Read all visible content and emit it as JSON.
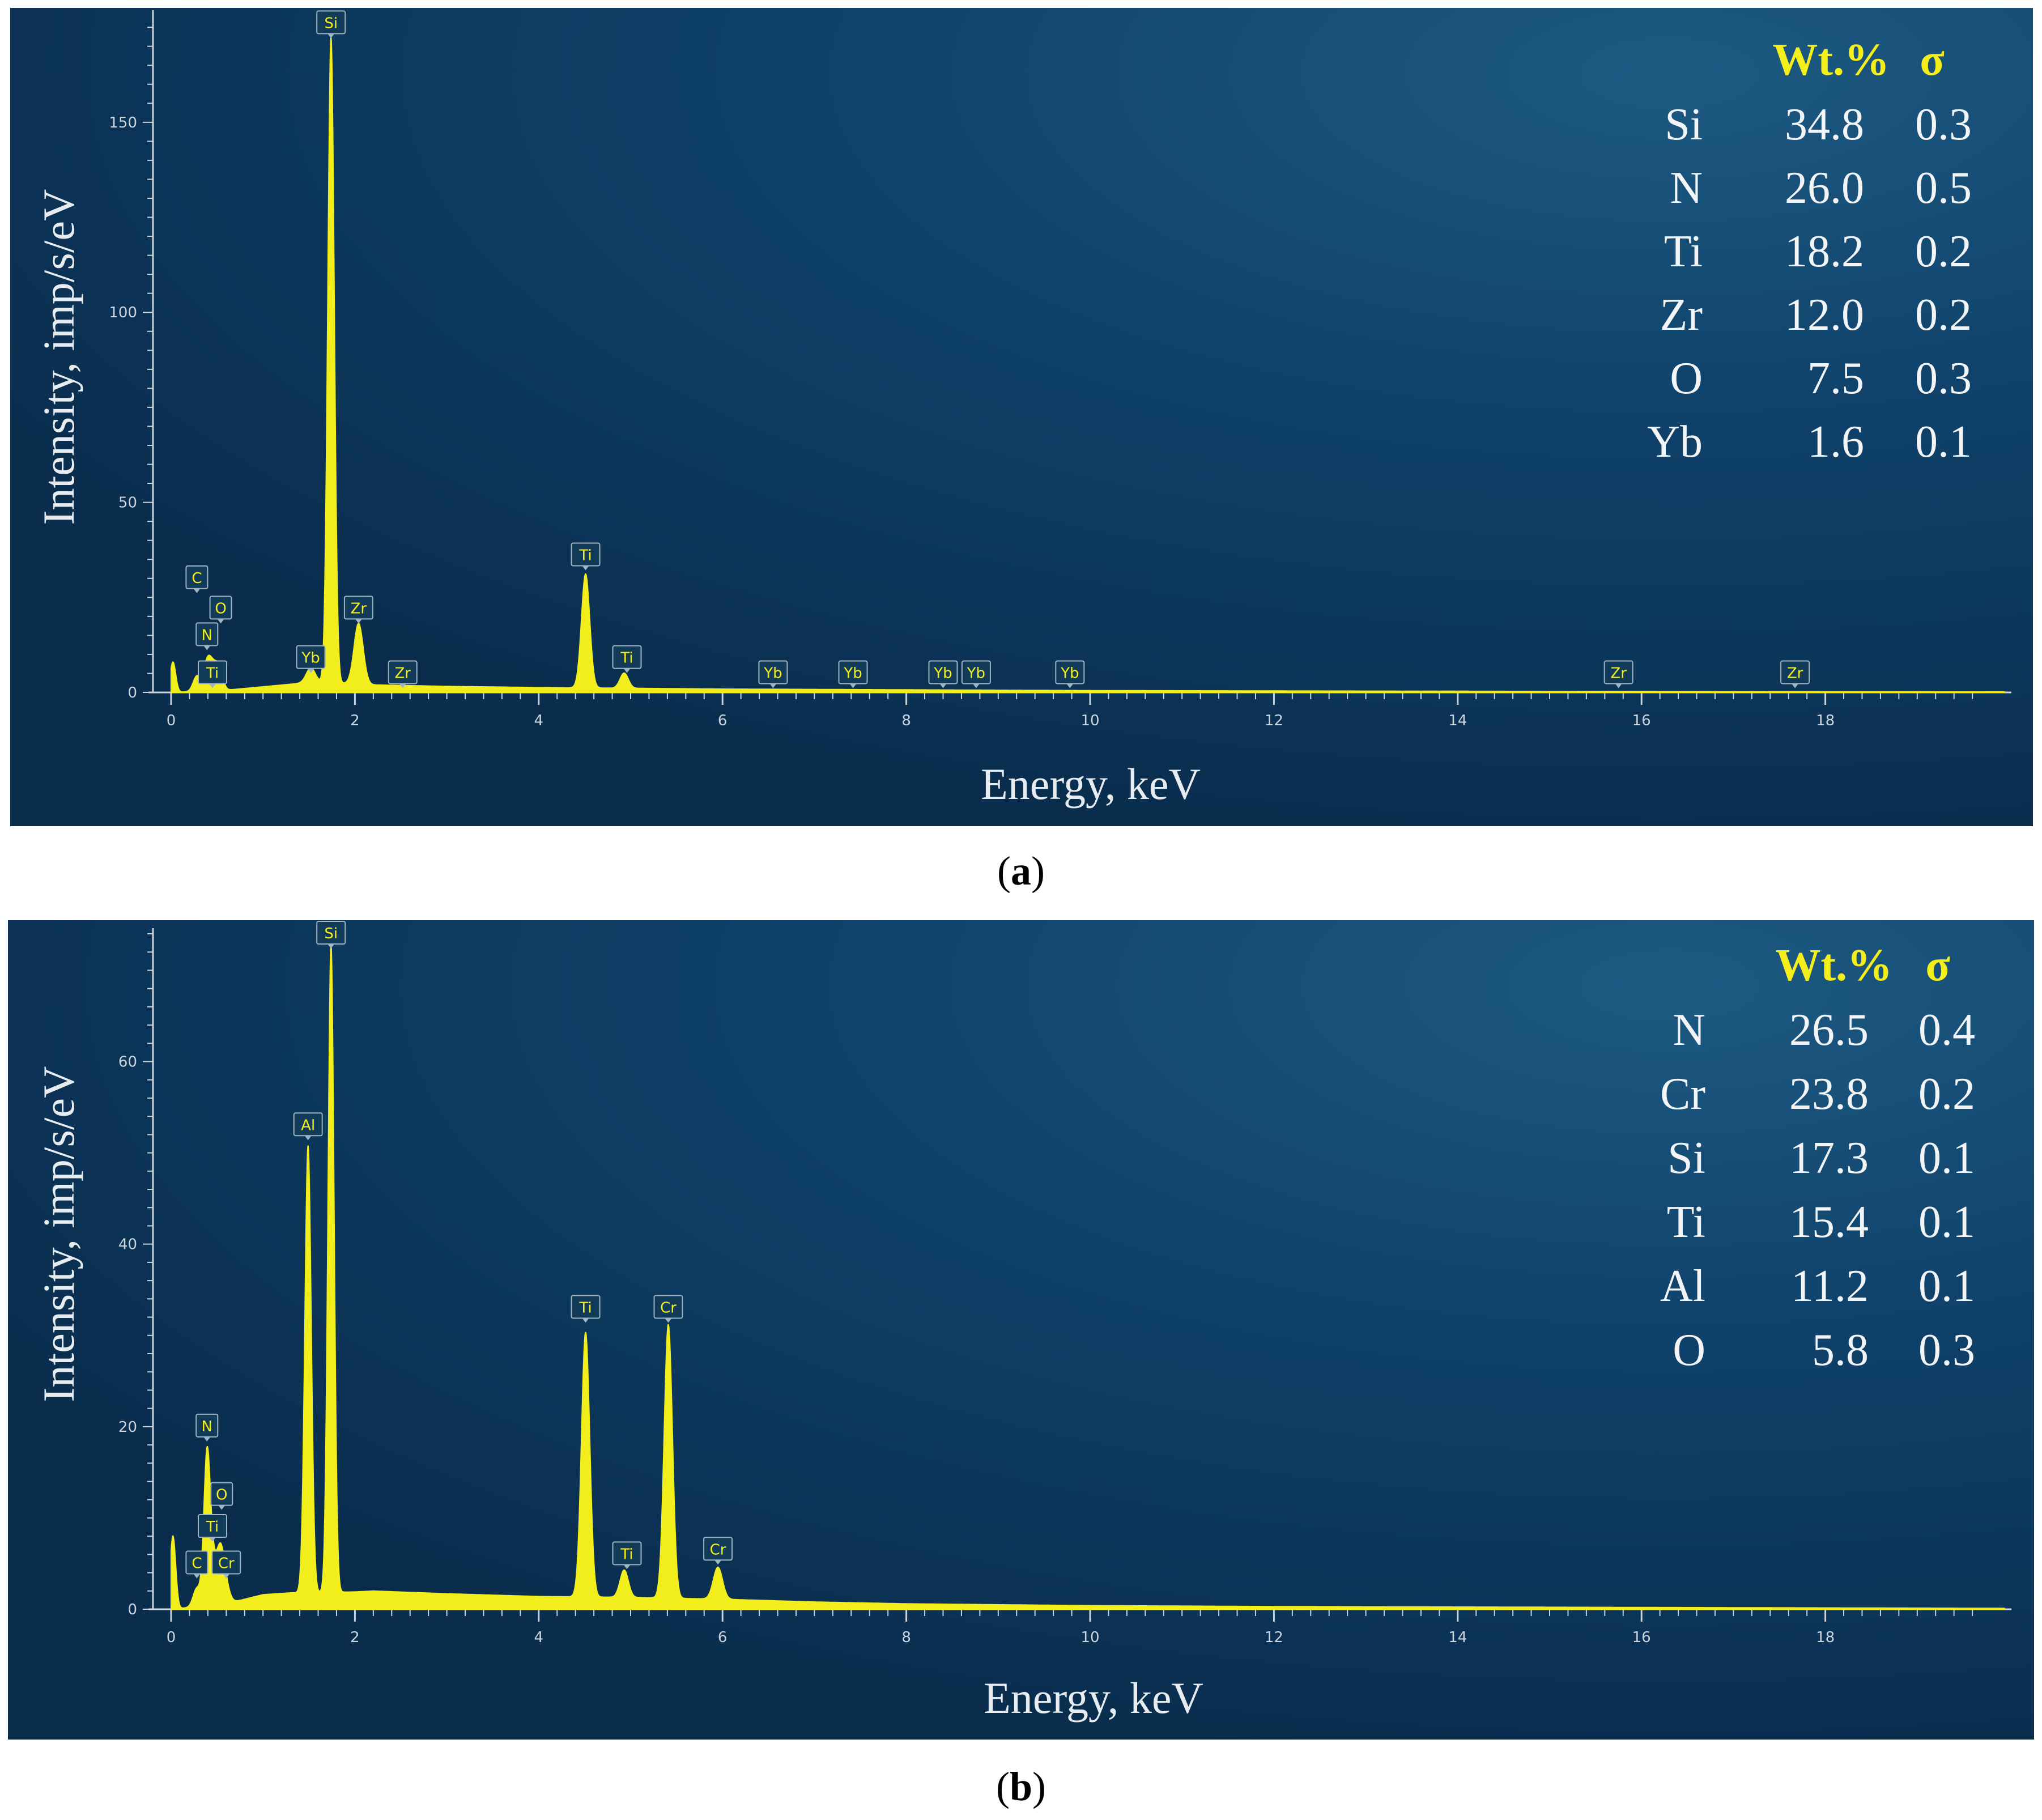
{
  "chart_data": [
    {
      "type": "line",
      "panel_label": "a",
      "xlabel": "Energy, keV",
      "ylabel": "Intensity, imp/s/eV",
      "xlim": [
        0,
        20
      ],
      "ylim": [
        0,
        178
      ],
      "x_ticks": [
        0,
        2,
        4,
        6,
        8,
        10,
        12,
        14,
        16,
        18
      ],
      "y_ticks": [
        0,
        50,
        100,
        150
      ],
      "background": "#0b3a5e",
      "series_color": "#f2ee1c",
      "peaks": [
        {
          "x": 0.02,
          "y": 8,
          "w": 0.03
        },
        {
          "x": 0.28,
          "y": 4,
          "w": 0.04
        },
        {
          "x": 0.39,
          "y": 7,
          "w": 0.04
        },
        {
          "x": 0.45,
          "y": 5,
          "w": 0.04
        },
        {
          "x": 0.52,
          "y": 6,
          "w": 0.04
        },
        {
          "x": 1.52,
          "y": 4,
          "w": 0.05
        },
        {
          "x": 1.74,
          "y": 170,
          "w": 0.035
        },
        {
          "x": 2.04,
          "y": 16,
          "w": 0.05
        },
        {
          "x": 4.51,
          "y": 30,
          "w": 0.045
        },
        {
          "x": 4.93,
          "y": 4,
          "w": 0.045
        }
      ],
      "continuum": {
        "x": [
          0.0,
          0.6,
          1.0,
          1.4,
          1.7,
          2.2,
          3.0,
          4.0,
          5.0,
          6.0,
          8.0,
          10.0,
          12.0,
          16.0,
          20.0
        ],
        "y": [
          0.0,
          0.6,
          1.5,
          2.4,
          2.6,
          2.0,
          1.6,
          1.3,
          1.1,
          0.9,
          0.7,
          0.5,
          0.4,
          0.25,
          0.15
        ]
      },
      "peak_labels": [
        {
          "text": "C",
          "x": 0.28,
          "y": 30
        },
        {
          "text": "N",
          "x": 0.39,
          "y": 15
        },
        {
          "text": "O",
          "x": 0.54,
          "y": 22
        },
        {
          "text": "Ti",
          "x": 0.45,
          "y": 5
        },
        {
          "text": "Yb",
          "x": 1.52,
          "y": 9
        },
        {
          "text": "Si",
          "x": 1.74,
          "y": 176
        },
        {
          "text": "Zr",
          "x": 2.04,
          "y": 22
        },
        {
          "text": "Zr",
          "x": 2.52,
          "y": 5
        },
        {
          "text": "Ti",
          "x": 4.51,
          "y": 36
        },
        {
          "text": "Ti",
          "x": 4.96,
          "y": 9
        },
        {
          "text": "Yb",
          "x": 6.55,
          "y": 5
        },
        {
          "text": "Yb",
          "x": 7.42,
          "y": 5
        },
        {
          "text": "Yb",
          "x": 8.4,
          "y": 5
        },
        {
          "text": "Yb",
          "x": 8.76,
          "y": 5
        },
        {
          "text": "Yb",
          "x": 9.78,
          "y": 5
        },
        {
          "text": "Zr",
          "x": 15.75,
          "y": 5
        },
        {
          "text": "Zr",
          "x": 17.67,
          "y": 5
        }
      ],
      "composition_table": {
        "header": [
          "Wt.%",
          "σ"
        ],
        "rows": [
          {
            "element": "Si",
            "wt": "34.8",
            "sigma": "0.3"
          },
          {
            "element": "N",
            "wt": "26.0",
            "sigma": "0.5"
          },
          {
            "element": "Ti",
            "wt": "18.2",
            "sigma": "0.2"
          },
          {
            "element": "Zr",
            "wt": "12.0",
            "sigma": "0.2"
          },
          {
            "element": "O",
            "wt": "7.5",
            "sigma": "0.3"
          },
          {
            "element": "Yb",
            "wt": "1.6",
            "sigma": "0.1"
          }
        ]
      }
    },
    {
      "type": "line",
      "panel_label": "b",
      "xlabel": "Energy, keV",
      "ylabel": "Intensity, imp/s/eV",
      "xlim": [
        0,
        20
      ],
      "ylim": [
        0,
        74
      ],
      "x_ticks": [
        0,
        2,
        4,
        6,
        8,
        10,
        12,
        14,
        16,
        18
      ],
      "y_ticks": [
        0,
        20,
        40,
        60
      ],
      "background": "#0b3a5e",
      "series_color": "#f2ee1c",
      "peaks": [
        {
          "x": 0.02,
          "y": 8,
          "w": 0.03
        },
        {
          "x": 0.28,
          "y": 2,
          "w": 0.04
        },
        {
          "x": 0.39,
          "y": 16,
          "w": 0.035
        },
        {
          "x": 0.45,
          "y": 4,
          "w": 0.04
        },
        {
          "x": 0.53,
          "y": 4,
          "w": 0.04
        },
        {
          "x": 0.57,
          "y": 3,
          "w": 0.05
        },
        {
          "x": 1.49,
          "y": 49,
          "w": 0.035
        },
        {
          "x": 1.74,
          "y": 71,
          "w": 0.033
        },
        {
          "x": 4.51,
          "y": 29,
          "w": 0.045
        },
        {
          "x": 4.93,
          "y": 3,
          "w": 0.045
        },
        {
          "x": 5.41,
          "y": 30,
          "w": 0.045
        },
        {
          "x": 5.95,
          "y": 3.5,
          "w": 0.05
        }
      ],
      "continuum": {
        "x": [
          0.0,
          0.6,
          1.0,
          1.3,
          2.0,
          2.2,
          3.0,
          4.0,
          5.0,
          6.0,
          7.0,
          8.0,
          10.0,
          12.0,
          16.0,
          20.0
        ],
        "y": [
          0.0,
          0.6,
          1.6,
          1.8,
          1.9,
          2.0,
          1.7,
          1.4,
          1.3,
          1.1,
          0.8,
          0.6,
          0.4,
          0.3,
          0.2,
          0.1
        ]
      },
      "peak_labels": [
        {
          "text": "N",
          "x": 0.39,
          "y": 20
        },
        {
          "text": "O",
          "x": 0.55,
          "y": 12.5
        },
        {
          "text": "Ti",
          "x": 0.45,
          "y": 9
        },
        {
          "text": "C",
          "x": 0.28,
          "y": 5
        },
        {
          "text": "Cr",
          "x": 0.6,
          "y": 5
        },
        {
          "text": "Al",
          "x": 1.49,
          "y": 53
        },
        {
          "text": "Si",
          "x": 1.74,
          "y": 74
        },
        {
          "text": "Ti",
          "x": 4.51,
          "y": 33
        },
        {
          "text": "Ti",
          "x": 4.96,
          "y": 6
        },
        {
          "text": "Cr",
          "x": 5.41,
          "y": 33
        },
        {
          "text": "Cr",
          "x": 5.95,
          "y": 6.5
        }
      ],
      "composition_table": {
        "header": [
          "Wt.%",
          "σ"
        ],
        "rows": [
          {
            "element": "N",
            "wt": "26.5",
            "sigma": "0.4"
          },
          {
            "element": "Cr",
            "wt": "23.8",
            "sigma": "0.2"
          },
          {
            "element": "Si",
            "wt": "17.3",
            "sigma": "0.1"
          },
          {
            "element": "Ti",
            "wt": "15.4",
            "sigma": "0.1"
          },
          {
            "element": "Al",
            "wt": "11.2",
            "sigma": "0.1"
          },
          {
            "element": "O",
            "wt": "5.8",
            "sigma": "0.3"
          }
        ]
      }
    }
  ]
}
